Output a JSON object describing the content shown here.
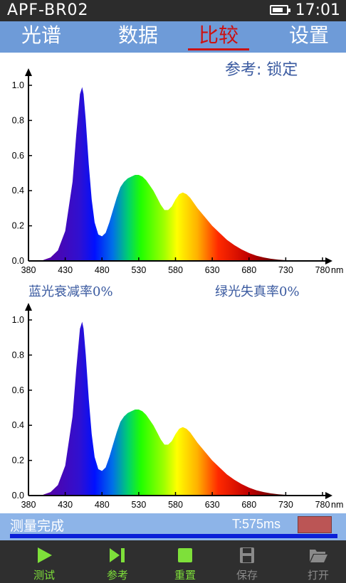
{
  "status_bar": {
    "device": "APF-BR02",
    "time": "17:01",
    "battery_level": 0.75
  },
  "tabs": [
    {
      "label": "光谱",
      "active": false
    },
    {
      "label": "数据",
      "active": false
    },
    {
      "label": "比较",
      "active": true
    },
    {
      "label": "设置",
      "active": false
    }
  ],
  "reference_status": "参考: 锁定",
  "metrics": {
    "blue_decay": "蓝光衰减率0%",
    "green_distortion": "绿光失真率0%"
  },
  "chart_data": [
    {
      "type": "area",
      "title": "",
      "xlabel": "",
      "ylabel": "",
      "x_unit": "nm",
      "xlim": [
        380,
        780
      ],
      "ylim": [
        0,
        1.0
      ],
      "x_ticks": [
        380,
        430,
        480,
        530,
        580,
        630,
        680,
        730,
        780
      ],
      "y_ticks": [
        0.0,
        0.2,
        0.4,
        0.6,
        0.8,
        1.0
      ],
      "grid": false,
      "fill": "visible-spectrum-gradient",
      "series": [
        {
          "x": [
            400,
            410,
            420,
            430,
            440,
            445,
            450,
            453,
            455,
            458,
            462,
            466,
            470,
            475,
            480,
            485,
            490,
            495,
            500,
            505,
            510,
            515,
            520,
            525,
            530,
            535,
            540,
            545,
            550,
            555,
            560,
            565,
            570,
            575,
            580,
            585,
            590,
            595,
            600,
            605,
            610,
            620,
            630,
            640,
            650,
            660,
            670,
            680,
            690,
            700,
            710,
            720,
            730,
            740,
            750
          ],
          "values": [
            0.005,
            0.02,
            0.06,
            0.17,
            0.45,
            0.72,
            0.95,
            0.99,
            0.95,
            0.8,
            0.55,
            0.35,
            0.22,
            0.15,
            0.14,
            0.16,
            0.22,
            0.29,
            0.36,
            0.42,
            0.45,
            0.47,
            0.48,
            0.49,
            0.49,
            0.48,
            0.46,
            0.43,
            0.4,
            0.36,
            0.32,
            0.29,
            0.29,
            0.31,
            0.35,
            0.38,
            0.39,
            0.38,
            0.36,
            0.33,
            0.3,
            0.25,
            0.2,
            0.16,
            0.12,
            0.09,
            0.065,
            0.045,
            0.03,
            0.02,
            0.012,
            0.007,
            0.004,
            0.002,
            0.0
          ]
        }
      ]
    },
    {
      "type": "area",
      "title": "",
      "xlabel": "",
      "ylabel": "",
      "x_unit": "nm",
      "xlim": [
        380,
        780
      ],
      "ylim": [
        0,
        1.0
      ],
      "x_ticks": [
        380,
        430,
        480,
        530,
        580,
        630,
        680,
        730,
        780
      ],
      "y_ticks": [
        0.0,
        0.2,
        0.4,
        0.6,
        0.8,
        1.0
      ],
      "grid": false,
      "fill": "visible-spectrum-gradient",
      "series": [
        {
          "x": [
            400,
            410,
            420,
            430,
            440,
            445,
            450,
            453,
            455,
            458,
            462,
            466,
            470,
            475,
            480,
            485,
            490,
            495,
            500,
            505,
            510,
            515,
            520,
            525,
            530,
            535,
            540,
            545,
            550,
            555,
            560,
            565,
            570,
            575,
            580,
            585,
            590,
            595,
            600,
            605,
            610,
            620,
            630,
            640,
            650,
            660,
            670,
            680,
            690,
            700,
            710,
            720,
            730,
            740,
            750
          ],
          "values": [
            0.005,
            0.02,
            0.06,
            0.17,
            0.45,
            0.72,
            0.95,
            0.99,
            0.95,
            0.8,
            0.55,
            0.35,
            0.22,
            0.15,
            0.14,
            0.16,
            0.22,
            0.29,
            0.36,
            0.42,
            0.45,
            0.47,
            0.48,
            0.49,
            0.49,
            0.48,
            0.46,
            0.43,
            0.4,
            0.36,
            0.32,
            0.29,
            0.29,
            0.31,
            0.35,
            0.38,
            0.39,
            0.38,
            0.36,
            0.33,
            0.3,
            0.25,
            0.2,
            0.16,
            0.12,
            0.09,
            0.065,
            0.045,
            0.03,
            0.02,
            0.012,
            0.007,
            0.004,
            0.002,
            0.0
          ]
        }
      ]
    }
  ],
  "measurement": {
    "status": "测量完成",
    "time": "T:575ms",
    "progress": 1.0
  },
  "toolbar": [
    {
      "label": "测试",
      "icon": "play-icon",
      "enabled": true
    },
    {
      "label": "参考",
      "icon": "step-forward-icon",
      "enabled": true
    },
    {
      "label": "重置",
      "icon": "stop-icon",
      "enabled": true
    },
    {
      "label": "保存",
      "icon": "save-icon",
      "enabled": false
    },
    {
      "label": "打开",
      "icon": "folder-open-icon",
      "enabled": false
    }
  ],
  "colors": {
    "tab_bar": "#6e9bd8",
    "active_tab": "#cc1111",
    "toolbar_enabled": "#7ee03a",
    "toolbar_disabled": "#8a8a8a",
    "progress": "#0a1fd8"
  }
}
